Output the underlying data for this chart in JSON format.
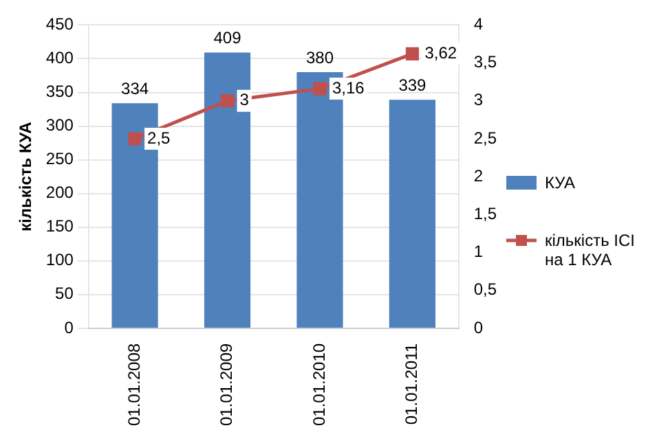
{
  "chart_data": {
    "type": "bar",
    "ylabel": "кількість КУА",
    "categories": [
      "01.01.2008",
      "01.01.2009",
      "01.01.2010",
      "01.01.2011"
    ],
    "series": [
      {
        "name": "КУА",
        "color": "#4f81bd",
        "values": [
          334,
          409,
          380,
          339
        ],
        "value_labels": [
          "334",
          "409",
          "380",
          "339"
        ]
      },
      {
        "name": "кількість ІСІ на 1 КУА",
        "type": "line",
        "axis": "y2",
        "color": "#c0504d",
        "values": [
          2.5,
          3,
          3.16,
          3.62
        ],
        "value_labels": [
          "2,5",
          "3",
          "3,16",
          "3,62"
        ],
        "marker": "square"
      }
    ],
    "ylim": [
      0,
      450
    ],
    "yticks": [
      0,
      50,
      100,
      150,
      200,
      250,
      300,
      350,
      400,
      450
    ],
    "y2lim": [
      0,
      4
    ],
    "y2ticks": [
      0,
      {
        "value": 0.5,
        "label": "0,5"
      },
      1,
      {
        "value": 1.5,
        "label": "1,5"
      },
      2,
      {
        "value": 2.5,
        "label": "2,5"
      },
      3,
      {
        "value": 3.5,
        "label": "3,5"
      },
      4
    ],
    "grid": "y",
    "legend": "right"
  }
}
